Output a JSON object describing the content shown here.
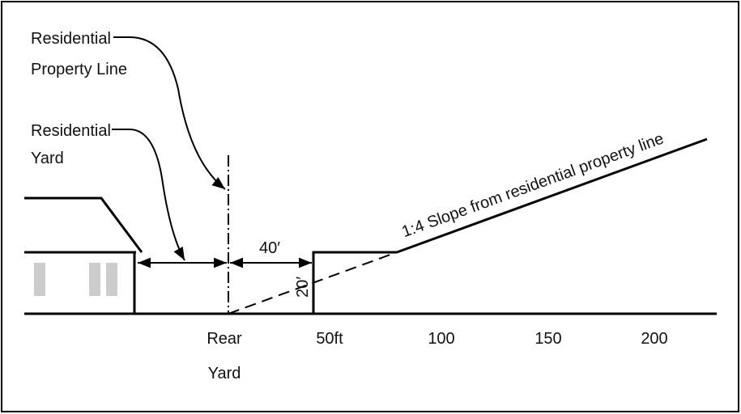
{
  "labels": {
    "property_line": [
      "Residential",
      "Property Line"
    ],
    "yard": [
      "Residential",
      "Yard"
    ]
  },
  "dimensions": {
    "horizontal": "40′",
    "vertical": "20′"
  },
  "slope": "1:4 Slope from residential property line",
  "axis": {
    "rear": [
      "Rear",
      "Yard"
    ],
    "ticks": [
      "50ft",
      "100",
      "150",
      "200"
    ]
  }
}
